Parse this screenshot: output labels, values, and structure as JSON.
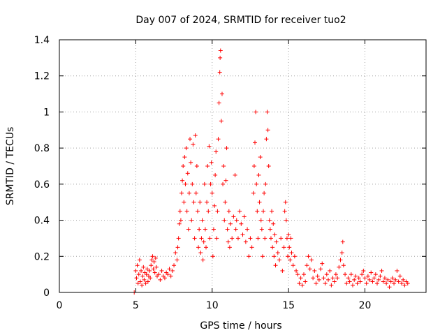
{
  "chart_data": {
    "type": "scatter",
    "title": "Day 007 of 2024, SRMTID for receiver tuo2",
    "xlabel": "GPS time / hours",
    "ylabel": "SRMTID / TECUs",
    "xlim": [
      0,
      24
    ],
    "ylim": [
      0,
      1.4
    ],
    "xticks": [
      0,
      5,
      10,
      15,
      20
    ],
    "xtick_labels": [
      "0",
      "5",
      "10",
      "15",
      "20"
    ],
    "yticks": [
      0,
      0.2,
      0.4,
      0.6,
      0.8,
      1,
      1.2,
      1.4
    ],
    "ytick_labels": [
      "0",
      "0.2",
      "0.4",
      "0.6",
      "0.8",
      "1",
      "1.2",
      "1.4"
    ],
    "grid": true,
    "marker": "+",
    "color": "#ff0000",
    "series": [
      {
        "name": "SRMTID",
        "points": [
          [
            4.9,
            0.0
          ],
          [
            5.0,
            0.12
          ],
          [
            5.05,
            0.08
          ],
          [
            5.1,
            0.15
          ],
          [
            5.15,
            0.05
          ],
          [
            5.2,
            0.1
          ],
          [
            5.25,
            0.18
          ],
          [
            5.3,
            0.06
          ],
          [
            5.35,
            0.12
          ],
          [
            5.4,
            0.04
          ],
          [
            5.45,
            0.09
          ],
          [
            5.5,
            0.14
          ],
          [
            5.55,
            0.07
          ],
          [
            5.6,
            0.11
          ],
          [
            5.65,
            0.05
          ],
          [
            5.7,
            0.1
          ],
          [
            5.75,
            0.13
          ],
          [
            5.8,
            0.06
          ],
          [
            5.85,
            0.09
          ],
          [
            5.9,
            0.12
          ],
          [
            5.95,
            0.08
          ],
          [
            6.0,
            0.15
          ],
          [
            6.05,
            0.18
          ],
          [
            6.1,
            0.2
          ],
          [
            6.15,
            0.13
          ],
          [
            6.2,
            0.17
          ],
          [
            6.25,
            0.11
          ],
          [
            6.3,
            0.19
          ],
          [
            6.35,
            0.14
          ],
          [
            6.4,
            0.09
          ],
          [
            6.5,
            0.1
          ],
          [
            6.6,
            0.07
          ],
          [
            6.7,
            0.12
          ],
          [
            6.8,
            0.09
          ],
          [
            6.9,
            0.08
          ],
          [
            7.0,
            0.11
          ],
          [
            7.1,
            0.1
          ],
          [
            7.2,
            0.13
          ],
          [
            7.3,
            0.09
          ],
          [
            7.4,
            0.12
          ],
          [
            7.5,
            0.15
          ],
          [
            7.6,
            0.22
          ],
          [
            7.7,
            0.18
          ],
          [
            7.75,
            0.25
          ],
          [
            7.8,
            0.3
          ],
          [
            7.85,
            0.38
          ],
          [
            7.9,
            0.45
          ],
          [
            7.95,
            0.4
          ],
          [
            8.0,
            0.55
          ],
          [
            8.05,
            0.62
          ],
          [
            8.1,
            0.7
          ],
          [
            8.15,
            0.5
          ],
          [
            8.2,
            0.75
          ],
          [
            8.25,
            0.6
          ],
          [
            8.3,
            0.8
          ],
          [
            8.35,
            0.45
          ],
          [
            8.4,
            0.66
          ],
          [
            8.45,
            0.35
          ],
          [
            8.5,
            0.55
          ],
          [
            8.55,
            0.85
          ],
          [
            8.6,
            0.72
          ],
          [
            8.65,
            0.4
          ],
          [
            8.7,
            0.6
          ],
          [
            8.75,
            0.82
          ],
          [
            8.8,
            0.5
          ],
          [
            8.85,
            0.3
          ],
          [
            8.9,
            0.87
          ],
          [
            8.95,
            0.55
          ],
          [
            9.0,
            0.7
          ],
          [
            9.05,
            0.45
          ],
          [
            9.1,
            0.25
          ],
          [
            9.15,
            0.35
          ],
          [
            9.2,
            0.5
          ],
          [
            9.25,
            0.22
          ],
          [
            9.3,
            0.3
          ],
          [
            9.35,
            0.4
          ],
          [
            9.4,
            0.18
          ],
          [
            9.45,
            0.28
          ],
          [
            9.5,
            0.6
          ],
          [
            9.55,
            0.35
          ],
          [
            9.6,
            0.25
          ],
          [
            9.65,
            0.5
          ],
          [
            9.7,
            0.7
          ],
          [
            9.75,
            0.45
          ],
          [
            9.8,
            0.81
          ],
          [
            9.85,
            0.3
          ],
          [
            9.9,
            0.6
          ],
          [
            9.95,
            0.72
          ],
          [
            10.0,
            0.55
          ],
          [
            10.05,
            0.2
          ],
          [
            10.1,
            0.35
          ],
          [
            10.15,
            0.48
          ],
          [
            10.2,
            0.65
          ],
          [
            10.25,
            0.78
          ],
          [
            10.3,
            0.3
          ],
          [
            10.35,
            0.45
          ],
          [
            10.4,
            0.85
          ],
          [
            10.45,
            1.05
          ],
          [
            10.5,
            1.22
          ],
          [
            10.52,
            1.3
          ],
          [
            10.55,
            1.34
          ],
          [
            10.6,
            0.95
          ],
          [
            10.65,
            1.1
          ],
          [
            10.7,
            0.6
          ],
          [
            10.75,
            0.7
          ],
          [
            10.8,
            0.4
          ],
          [
            10.85,
            0.5
          ],
          [
            10.9,
            0.62
          ],
          [
            10.95,
            0.8
          ],
          [
            11.0,
            0.35
          ],
          [
            11.05,
            0.28
          ],
          [
            11.1,
            0.45
          ],
          [
            11.15,
            0.25
          ],
          [
            11.2,
            0.38
          ],
          [
            11.3,
            0.3
          ],
          [
            11.4,
            0.42
          ],
          [
            11.5,
            0.65
          ],
          [
            11.55,
            0.35
          ],
          [
            11.6,
            0.4
          ],
          [
            11.7,
            0.3
          ],
          [
            11.8,
            0.45
          ],
          [
            11.9,
            0.38
          ],
          [
            12.0,
            0.32
          ],
          [
            12.1,
            0.42
          ],
          [
            12.2,
            0.28
          ],
          [
            12.3,
            0.35
          ],
          [
            12.4,
            0.2
          ],
          [
            12.5,
            0.3
          ],
          [
            12.6,
            0.25
          ],
          [
            12.7,
            0.55
          ],
          [
            12.75,
            0.7
          ],
          [
            12.8,
            0.83
          ],
          [
            12.85,
            1.0
          ],
          [
            12.9,
            0.6
          ],
          [
            12.95,
            0.45
          ],
          [
            13.0,
            0.3
          ],
          [
            13.05,
            0.65
          ],
          [
            13.1,
            0.5
          ],
          [
            13.15,
            0.75
          ],
          [
            13.2,
            0.4
          ],
          [
            13.25,
            0.35
          ],
          [
            13.3,
            0.2
          ],
          [
            13.35,
            0.45
          ],
          [
            13.4,
            0.55
          ],
          [
            13.45,
            0.3
          ],
          [
            13.5,
            0.6
          ],
          [
            13.55,
            0.85
          ],
          [
            13.6,
            1.0
          ],
          [
            13.65,
            0.9
          ],
          [
            13.7,
            0.7
          ],
          [
            13.75,
            0.4
          ],
          [
            13.8,
            0.35
          ],
          [
            13.85,
            0.3
          ],
          [
            13.9,
            0.45
          ],
          [
            13.95,
            0.25
          ],
          [
            14.0,
            0.38
          ],
          [
            14.05,
            0.2
          ],
          [
            14.1,
            0.32
          ],
          [
            14.15,
            0.15
          ],
          [
            14.2,
            0.28
          ],
          [
            14.3,
            0.22
          ],
          [
            14.4,
            0.18
          ],
          [
            14.5,
            0.3
          ],
          [
            14.6,
            0.12
          ],
          [
            14.7,
            0.25
          ],
          [
            14.75,
            0.45
          ],
          [
            14.8,
            0.5
          ],
          [
            14.85,
            0.4
          ],
          [
            14.9,
            0.3
          ],
          [
            14.95,
            0.2
          ],
          [
            15.0,
            0.32
          ],
          [
            15.05,
            0.25
          ],
          [
            15.1,
            0.18
          ],
          [
            15.15,
            0.3
          ],
          [
            15.2,
            0.22
          ],
          [
            15.3,
            0.15
          ],
          [
            15.4,
            0.2
          ],
          [
            15.5,
            0.12
          ],
          [
            15.6,
            0.1
          ],
          [
            15.7,
            0.05
          ],
          [
            15.8,
            0.08
          ],
          [
            15.9,
            0.04
          ],
          [
            16.0,
            0.1
          ],
          [
            16.1,
            0.06
          ],
          [
            16.2,
            0.15
          ],
          [
            16.3,
            0.2
          ],
          [
            16.4,
            0.13
          ],
          [
            16.5,
            0.18
          ],
          [
            16.6,
            0.08
          ],
          [
            16.7,
            0.12
          ],
          [
            16.8,
            0.05
          ],
          [
            16.9,
            0.09
          ],
          [
            17.0,
            0.07
          ],
          [
            17.1,
            0.13
          ],
          [
            17.2,
            0.16
          ],
          [
            17.3,
            0.08
          ],
          [
            17.4,
            0.05
          ],
          [
            17.5,
            0.1
          ],
          [
            17.6,
            0.07
          ],
          [
            17.7,
            0.12
          ],
          [
            17.8,
            0.04
          ],
          [
            17.9,
            0.08
          ],
          [
            18.0,
            0.06
          ],
          [
            18.1,
            0.1
          ],
          [
            18.2,
            0.08
          ],
          [
            18.3,
            0.14
          ],
          [
            18.4,
            0.18
          ],
          [
            18.5,
            0.22
          ],
          [
            18.55,
            0.28
          ],
          [
            18.6,
            0.15
          ],
          [
            18.7,
            0.1
          ],
          [
            18.8,
            0.05
          ],
          [
            18.9,
            0.08
          ],
          [
            19.0,
            0.06
          ],
          [
            19.1,
            0.1
          ],
          [
            19.2,
            0.04
          ],
          [
            19.3,
            0.07
          ],
          [
            19.4,
            0.09
          ],
          [
            19.5,
            0.05
          ],
          [
            19.6,
            0.08
          ],
          [
            19.7,
            0.06
          ],
          [
            19.8,
            0.1
          ],
          [
            19.9,
            0.12
          ],
          [
            20.0,
            0.08
          ],
          [
            20.1,
            0.05
          ],
          [
            20.2,
            0.09
          ],
          [
            20.3,
            0.07
          ],
          [
            20.4,
            0.11
          ],
          [
            20.5,
            0.06
          ],
          [
            20.6,
            0.08
          ],
          [
            20.7,
            0.1
          ],
          [
            20.8,
            0.05
          ],
          [
            20.9,
            0.07
          ],
          [
            21.0,
            0.09
          ],
          [
            21.1,
            0.12
          ],
          [
            21.2,
            0.06
          ],
          [
            21.3,
            0.08
          ],
          [
            21.4,
            0.05
          ],
          [
            21.5,
            0.07
          ],
          [
            21.6,
            0.03
          ],
          [
            21.7,
            0.06
          ],
          [
            21.8,
            0.08
          ],
          [
            21.9,
            0.05
          ],
          [
            22.0,
            0.07
          ],
          [
            22.1,
            0.12
          ],
          [
            22.2,
            0.06
          ],
          [
            22.3,
            0.09
          ],
          [
            22.4,
            0.05
          ],
          [
            22.5,
            0.07
          ],
          [
            22.6,
            0.04
          ],
          [
            22.7,
            0.06
          ],
          [
            22.8,
            0.05
          ]
        ]
      }
    ]
  }
}
